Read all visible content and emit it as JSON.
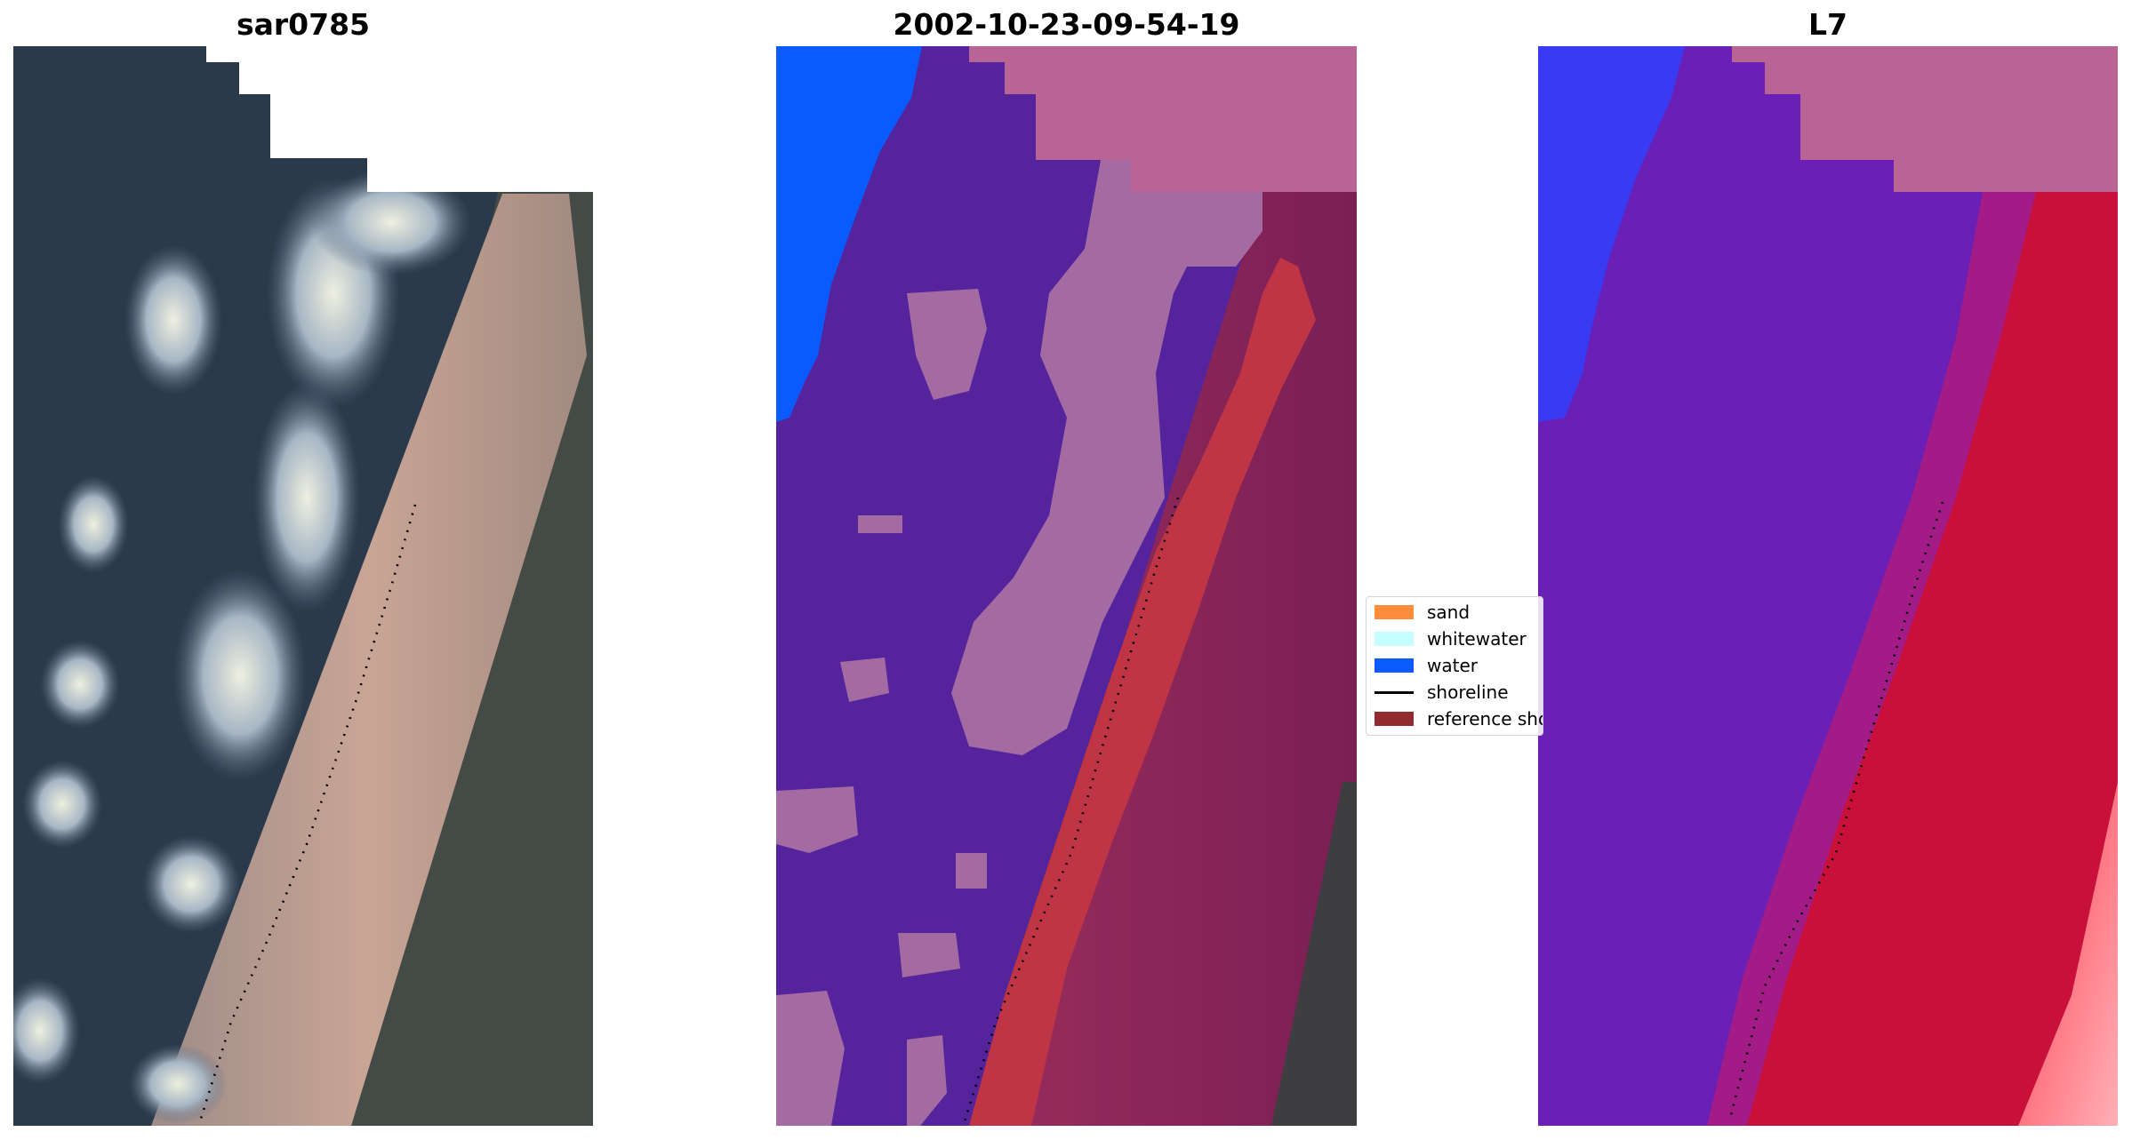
{
  "panels": [
    {
      "title": "sar0785"
    },
    {
      "title": "2002-10-23-09-54-19"
    },
    {
      "title": "L7"
    }
  ],
  "legend": {
    "items": [
      {
        "label": "sand",
        "color": "#ff8c3a",
        "kind": "patch"
      },
      {
        "label": "whitewater",
        "color": "#c6ffff",
        "kind": "patch"
      },
      {
        "label": "water",
        "color": "#0a5bff",
        "kind": "patch"
      },
      {
        "label": "shoreline",
        "color": "#000000",
        "kind": "line"
      },
      {
        "label": "reference shoreline",
        "color": "#922b30",
        "kind": "patch"
      }
    ]
  },
  "colors": {
    "rgb_water": "#2b3a4b",
    "rgb_beach": "#b59a8c",
    "rgb_land": "#444a45",
    "class_water": "#55239b",
    "class_land": "#8a2a5e",
    "class_sand_band": "#c03545",
    "class_whitewater_overlay": "#a46ba3",
    "class_ocean": "#0a5bff",
    "class_nodata": "#b86494",
    "mndwi_water": "#6a1fb6",
    "mndwi_land": "#c8103b",
    "mndwi_blue": "#3a3af2",
    "mndwi_nodata": "#b86494"
  }
}
